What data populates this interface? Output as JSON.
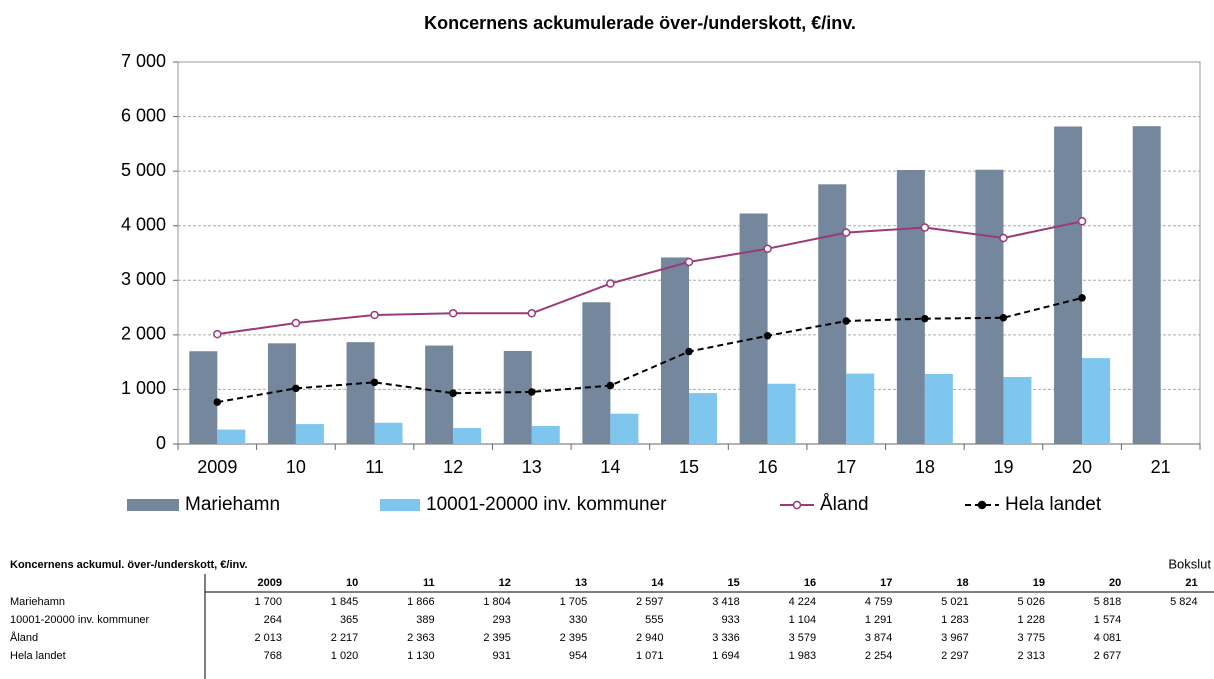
{
  "chart_data": {
    "type": "bar-line",
    "title": "Koncernens ackumulerade över-/underskott, €/inv.",
    "categories": [
      "2009",
      "10",
      "11",
      "12",
      "13",
      "14",
      "15",
      "16",
      "17",
      "18",
      "19",
      "20",
      "21"
    ],
    "series": [
      {
        "name": "Mariehamn",
        "kind": "bar",
        "color": "#74879d",
        "values": [
          1700,
          1845,
          1866,
          1804,
          1705,
          2597,
          3418,
          4224,
          4759,
          5021,
          5026,
          5818,
          5824
        ],
        "value_labels": [
          "1 700",
          "1 845",
          "1 866",
          "1 804",
          "1 705",
          "2 597",
          "3 418",
          "4 224",
          "4 759",
          "5 021",
          "5 026",
          "5 818",
          "5 824"
        ]
      },
      {
        "name": "10001-20000 inv. kommuner",
        "kind": "bar",
        "color": "#7fc6ef",
        "values": [
          264,
          365,
          389,
          293,
          330,
          555,
          933,
          1104,
          1291,
          1283,
          1228,
          1574,
          null
        ],
        "value_labels": [
          "264",
          "365",
          "389",
          "293",
          "330",
          "555",
          "933",
          "1 104",
          "1 291",
          "1 283",
          "1 228",
          "1 574",
          null
        ]
      },
      {
        "name": "Åland",
        "kind": "line",
        "color": "#9b3a78",
        "marker": "open",
        "values": [
          2013,
          2217,
          2363,
          2395,
          2395,
          2940,
          3336,
          3579,
          3874,
          3967,
          3775,
          4081,
          null
        ],
        "value_labels": [
          "2 013",
          "2 217",
          "2 363",
          "2 395",
          "2 395",
          "2 940",
          "3 336",
          "3 579",
          "3 874",
          "3 967",
          "3 775",
          "4 081",
          null
        ]
      },
      {
        "name": "Hela landet",
        "kind": "line",
        "color": "#000000",
        "marker": "filled",
        "dashed": true,
        "values": [
          768,
          1020,
          1130,
          931,
          954,
          1071,
          1694,
          1983,
          2254,
          2297,
          2313,
          2677,
          null
        ],
        "value_labels": [
          "768",
          "1 020",
          "1 130",
          "931",
          "954",
          "1 071",
          "1 694",
          "1 983",
          "2 254",
          "2 297",
          "2 313",
          "2 677",
          null
        ]
      }
    ],
    "ylim": [
      0,
      7000
    ],
    "yticks": [
      0,
      {
        "value": 1000,
        "label": "1 000"
      },
      {
        "value": 2000,
        "label": "2 000"
      },
      {
        "value": 3000,
        "label": "3 000"
      },
      {
        "value": 4000,
        "label": "4 000"
      },
      {
        "value": 5000,
        "label": "5 000"
      },
      {
        "value": 6000,
        "label": "6 000"
      },
      {
        "value": 7000,
        "label": "7 000"
      }
    ],
    "grid": true,
    "legend": "bottom"
  },
  "table": {
    "title": "Koncernens ackumul. över-/underskott, €/inv.",
    "note": "Bokslut"
  }
}
